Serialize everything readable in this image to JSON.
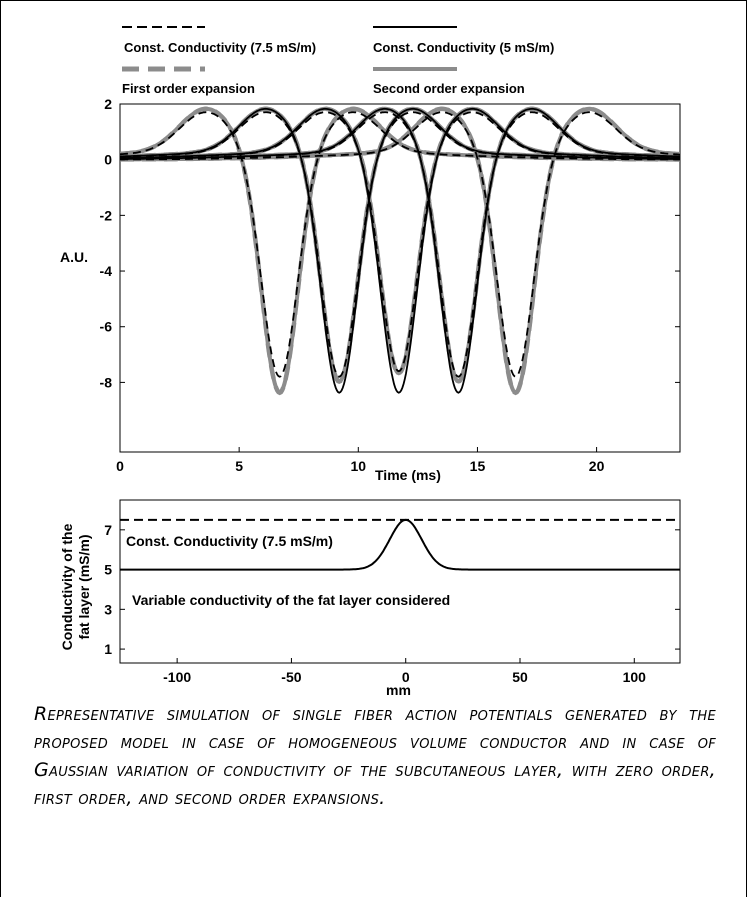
{
  "chart_data": [
    {
      "type": "line",
      "xlabel": "Time (ms)",
      "ylabel": "A.U.",
      "xlim": [
        0,
        23.5
      ],
      "ylim": [
        -10.5,
        2
      ],
      "xticks": [
        0,
        5,
        10,
        15,
        20
      ],
      "yticks": [
        2,
        0,
        -2,
        -4,
        -6,
        -8
      ],
      "legend": [
        {
          "label": "Const. Conductivity (7.5 mS/m)",
          "style": "dashed-black"
        },
        {
          "label": "Const. Conductivity (5 mS/m)",
          "style": "solid-black"
        },
        {
          "label": "First order expansion",
          "style": "dashed-gray"
        },
        {
          "label": "Second order expansion",
          "style": "solid-gray"
        }
      ],
      "legend_placement": "top, above plot",
      "series": [
        {
          "name": "Const. Conductivity (7.5 mS/m)",
          "centers": [
            6.7,
            9.2,
            11.7,
            14.2,
            16.6
          ],
          "minimum": [
            -8.2,
            -8.2,
            -8.0,
            -8.2,
            -8.2
          ],
          "peak": [
            1.4,
            1.4,
            1.4,
            1.4,
            1.4
          ]
        },
        {
          "name": "Const. Conductivity (5 mS/m)",
          "centers": [
            9.2,
            11.7,
            14.2
          ],
          "minimum": [
            -8.8,
            -8.8,
            -8.8
          ],
          "peak": [
            1.5,
            1.5,
            1.5
          ]
        },
        {
          "name": "First order expansion",
          "centers": [
            6.7,
            9.2,
            11.7,
            14.2,
            16.6
          ],
          "minimum": [
            -8.8,
            -8.4,
            -8.1,
            -8.4,
            -8.8
          ],
          "peak": [
            1.5,
            1.5,
            1.5,
            1.5,
            1.5
          ]
        },
        {
          "name": "Second order expansion",
          "centers": [
            6.7,
            9.2,
            11.7,
            14.2,
            16.6
          ],
          "minimum": [
            -8.8,
            -8.4,
            -8.1,
            -8.4,
            -8.8
          ],
          "peak": [
            1.5,
            1.5,
            1.5,
            1.5,
            1.5
          ]
        }
      ]
    },
    {
      "type": "line",
      "xlabel": "mm",
      "ylabel": "Conductivity of the fat layer (mS/m)",
      "xlim": [
        -125,
        120
      ],
      "ylim": [
        0.3,
        8.5
      ],
      "xticks": [
        -100,
        -50,
        0,
        50,
        100
      ],
      "yticks": [
        1,
        3,
        5,
        7
      ],
      "annotations": [
        "Const. Conductivity (7.5 mS/m)",
        "Variable conductivity of the fat layer considered"
      ],
      "series": [
        {
          "name": "Const. Conductivity (7.5 mS/m)",
          "x": [
            -125,
            120
          ],
          "values": [
            7.5,
            7.5
          ]
        },
        {
          "name": "Variable conductivity of the fat layer considered",
          "x": [
            -125,
            -20,
            -10,
            -5,
            0,
            5,
            10,
            20,
            120
          ],
          "values": [
            5,
            5,
            5.6,
            6.9,
            7.5,
            6.9,
            5.6,
            5,
            5
          ]
        }
      ]
    }
  ],
  "caption": "Representative simulation of single fiber action potentials generated by the proposed model in case of homogeneous volume conductor and in case of Gaussian variation of conductivity of the subcutaneous layer, with zero order, first order, and second order expansions."
}
